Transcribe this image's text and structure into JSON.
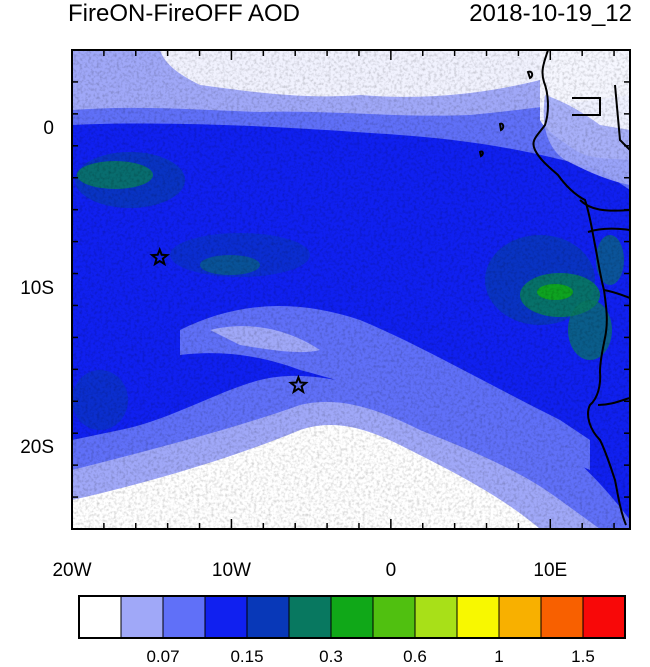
{
  "title": "FireON-FireOFF AOD",
  "timestamp": "2018-10-19_12",
  "x_axis": {
    "ticks": [
      {
        "lon": -20,
        "label": "20W"
      },
      {
        "lon": -10,
        "label": "10W"
      },
      {
        "lon": 0,
        "label": "0"
      },
      {
        "lon": 10,
        "label": "10E"
      }
    ]
  },
  "y_axis": {
    "ticks": [
      {
        "lat": 0,
        "label": "0"
      },
      {
        "lat": -10,
        "label": "10S"
      },
      {
        "lat": -20,
        "label": "20S"
      }
    ]
  },
  "map_extent": {
    "lon_min": -20,
    "lon_max": 15,
    "lat_min": -25,
    "lat_max": 5
  },
  "colorbar": {
    "colors": [
      "#ffffff",
      "#a0a8f8",
      "#6070f8",
      "#1020f0",
      "#0838b8",
      "#087860",
      "#10a818",
      "#50c010",
      "#a8e018",
      "#f8f800",
      "#f8b000",
      "#f86000",
      "#f80808"
    ],
    "labels": [
      {
        "text": "0.07",
        "boundary": 2
      },
      {
        "text": "0.15",
        "boundary": 4
      },
      {
        "text": "0.3",
        "boundary": 6
      },
      {
        "text": "0.6",
        "boundary": 8
      },
      {
        "text": "1",
        "boundary": 10
      },
      {
        "text": "1.5",
        "boundary": 12
      }
    ]
  },
  "markers": [
    {
      "name": "star-marker-1",
      "lon": -14.5,
      "lat": -8
    },
    {
      "name": "star-marker-2",
      "lon": -5.8,
      "lat": -16
    }
  ]
}
